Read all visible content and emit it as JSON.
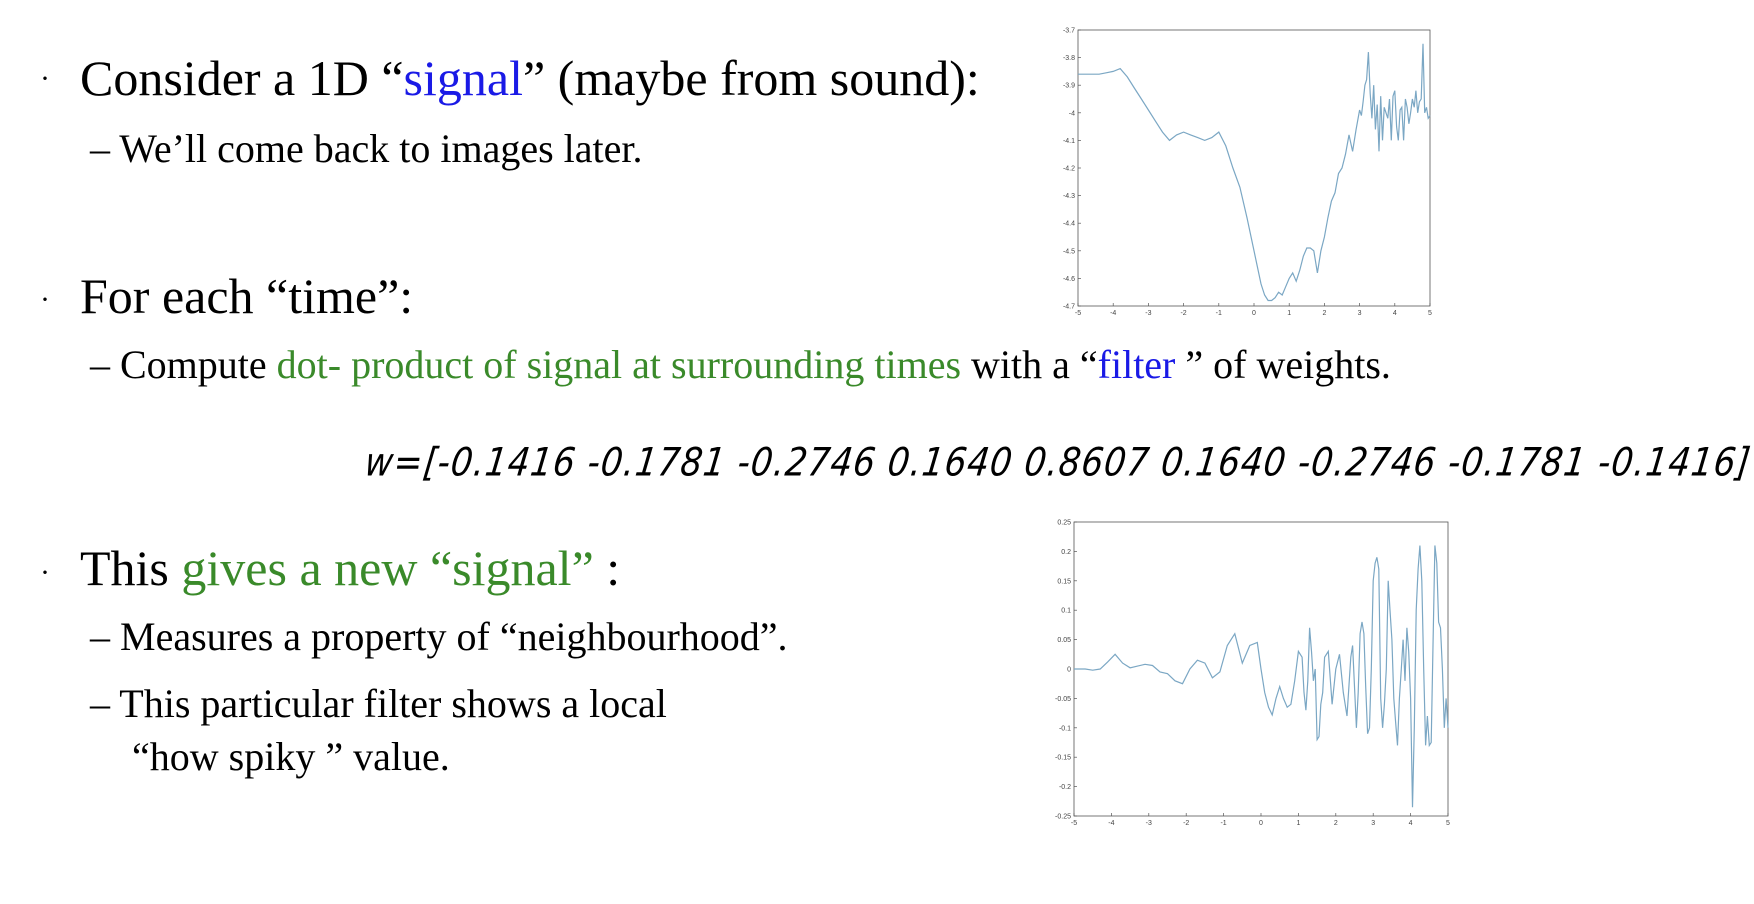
{
  "bullet_symbol": "·",
  "bullets": [
    {
      "main": {
        "before": "Consider a 1D “",
        "highlight": "signal",
        "after": "” (maybe from sound):"
      },
      "sub": [
        "– We’ll come back to images later."
      ]
    },
    {
      "main": {
        "text": "For each “time”:"
      },
      "sub": [
        {
          "dash": "– Compute ",
          "green": "dot- product of signal at surrounding times",
          "middle": " with a “",
          "blue": "filter",
          "after": " ” of weights."
        }
      ]
    },
    {
      "main": {
        "before": "This ",
        "highlight": "gives a new “signal”",
        "after": " :"
      },
      "sub": [
        "– Measures a property of “neighbourhood”.",
        "– This particular filter shows a local",
        "“how spiky ” value."
      ]
    }
  ],
  "handwritten_weights": "w=[-0.1416  -0.1781  -0.2746  0.1640  0.8607  0.1640  -0.2746  -0.1781  -0.1416]",
  "colors": {
    "blue": "#1a1ae6",
    "green": "#3a8a2a",
    "line": "#7ba7c4"
  },
  "chart_data": [
    {
      "type": "line",
      "title": "",
      "xlabel": "",
      "ylabel": "",
      "xlim": [
        -5,
        5
      ],
      "ylim": [
        -4.7,
        -3.7
      ],
      "x_ticks": [
        "-5",
        "-4",
        "-3",
        "-2",
        "-1",
        "0",
        "1",
        "2",
        "3",
        "4",
        "5"
      ],
      "y_ticks": [
        "-3.7",
        "-3.8",
        "-3.9",
        "-4",
        "-4.1",
        "-4.2",
        "-4.3",
        "-4.4",
        "-4.5",
        "-4.6",
        "-4.7"
      ],
      "series": [
        {
          "x": [
            -5,
            -4.7,
            -4.4,
            -4.2,
            -4,
            -3.8,
            -3.6,
            -3.4,
            -3.2,
            -3,
            -2.8,
            -2.6,
            -2.4,
            -2.2,
            -2,
            -1.8,
            -1.6,
            -1.4,
            -1.2,
            -1,
            -0.8,
            -0.6,
            -0.4,
            -0.2,
            0,
            0.2,
            0.3,
            0.4,
            0.5,
            0.6,
            0.7,
            0.8,
            0.9,
            1,
            1.1,
            1.2,
            1.3,
            1.4,
            1.5,
            1.6,
            1.7,
            1.8,
            1.9,
            2,
            2.1,
            2.2,
            2.3,
            2.4,
            2.5,
            2.6,
            2.7,
            2.8,
            2.9,
            3,
            3.05,
            3.1,
            3.15,
            3.2,
            3.25,
            3.3,
            3.35,
            3.4,
            3.45,
            3.5,
            3.55,
            3.6,
            3.65,
            3.7,
            3.75,
            3.8,
            3.85,
            3.9,
            3.95,
            4,
            4.05,
            4.1,
            4.15,
            4.2,
            4.25,
            4.3,
            4.35,
            4.4,
            4.45,
            4.5,
            4.55,
            4.6,
            4.65,
            4.7,
            4.75,
            4.8,
            4.85,
            4.9,
            4.95,
            5
          ],
          "y": [
            -3.86,
            -3.86,
            -3.86,
            -3.855,
            -3.85,
            -3.84,
            -3.87,
            -3.91,
            -3.95,
            -3.99,
            -4.03,
            -4.07,
            -4.1,
            -4.08,
            -4.07,
            -4.08,
            -4.09,
            -4.1,
            -4.09,
            -4.07,
            -4.12,
            -4.2,
            -4.27,
            -4.38,
            -4.5,
            -4.62,
            -4.66,
            -4.68,
            -4.68,
            -4.67,
            -4.65,
            -4.66,
            -4.63,
            -4.6,
            -4.58,
            -4.61,
            -4.57,
            -4.52,
            -4.49,
            -4.49,
            -4.5,
            -4.58,
            -4.5,
            -4.45,
            -4.38,
            -4.32,
            -4.29,
            -4.22,
            -4.2,
            -4.15,
            -4.08,
            -4.14,
            -4.06,
            -3.99,
            -4.01,
            -3.96,
            -3.9,
            -3.88,
            -3.78,
            -3.93,
            -4.02,
            -3.9,
            -4.06,
            -3.97,
            -4.14,
            -3.94,
            -4.1,
            -3.98,
            -4.0,
            -4.02,
            -3.95,
            -4.1,
            -3.94,
            -3.92,
            -4.05,
            -4.1,
            -3.99,
            -3.98,
            -4.1,
            -3.95,
            -3.98,
            -4.04,
            -4.0,
            -3.95,
            -3.98,
            -3.92,
            -4.0,
            -3.96,
            -3.95,
            -3.75,
            -4.0,
            -3.98,
            -4.02,
            -4.01
          ]
        }
      ]
    },
    {
      "type": "line",
      "title": "",
      "xlabel": "",
      "ylabel": "",
      "xlim": [
        -5,
        5
      ],
      "ylim": [
        -0.25,
        0.25
      ],
      "x_ticks": [
        "-5",
        "-4",
        "-3",
        "-2",
        "-1",
        "0",
        "1",
        "2",
        "3",
        "4",
        "5"
      ],
      "y_ticks": [
        "0.25",
        "0.2",
        "0.15",
        "0.1",
        "0.05",
        "0",
        "-0.05",
        "-0.1",
        "-0.15",
        "-0.2",
        "-0.25"
      ],
      "series": [
        {
          "x": [
            -5,
            -4.7,
            -4.5,
            -4.3,
            -4.1,
            -3.9,
            -3.7,
            -3.5,
            -3.3,
            -3.1,
            -2.9,
            -2.7,
            -2.5,
            -2.3,
            -2.1,
            -1.9,
            -1.7,
            -1.5,
            -1.3,
            -1.1,
            -0.9,
            -0.7,
            -0.5,
            -0.3,
            -0.1,
            0,
            0.1,
            0.2,
            0.3,
            0.4,
            0.5,
            0.6,
            0.7,
            0.8,
            0.9,
            1,
            1.1,
            1.15,
            1.2,
            1.25,
            1.3,
            1.35,
            1.4,
            1.45,
            1.5,
            1.55,
            1.6,
            1.65,
            1.7,
            1.8,
            1.9,
            2,
            2.1,
            2.2,
            2.3,
            2.4,
            2.45,
            2.5,
            2.55,
            2.6,
            2.65,
            2.7,
            2.75,
            2.8,
            2.85,
            2.9,
            2.95,
            3,
            3.05,
            3.1,
            3.15,
            3.2,
            3.25,
            3.3,
            3.35,
            3.4,
            3.45,
            3.5,
            3.55,
            3.6,
            3.65,
            3.7,
            3.75,
            3.8,
            3.85,
            3.9,
            3.95,
            4,
            4.05,
            4.1,
            4.15,
            4.2,
            4.25,
            4.3,
            4.35,
            4.4,
            4.45,
            4.5,
            4.55,
            4.6,
            4.65,
            4.7,
            4.75,
            4.8,
            4.85,
            4.9,
            4.95,
            5
          ],
          "y": [
            0,
            0,
            -0.002,
            0,
            0.012,
            0.025,
            0.01,
            0.002,
            0.005,
            0.008,
            0.006,
            -0.005,
            -0.008,
            -0.02,
            -0.025,
            0.0,
            0.015,
            0.01,
            -0.015,
            -0.005,
            0.04,
            0.06,
            0.01,
            0.04,
            0.045,
            0.0,
            -0.04,
            -0.065,
            -0.078,
            -0.05,
            -0.03,
            -0.05,
            -0.065,
            -0.06,
            -0.02,
            0.03,
            0.02,
            -0.04,
            -0.07,
            -0.02,
            0.07,
            0.03,
            -0.02,
            0.0,
            -0.12,
            -0.115,
            -0.06,
            -0.04,
            0.02,
            0.03,
            -0.06,
            0.0,
            0.025,
            -0.04,
            -0.08,
            0.02,
            0.04,
            -0.03,
            -0.1,
            -0.04,
            0.06,
            0.08,
            0.06,
            -0.03,
            -0.11,
            -0.1,
            0.0,
            0.15,
            0.18,
            0.19,
            0.17,
            -0.05,
            -0.1,
            -0.06,
            0.0,
            0.15,
            0.1,
            0.05,
            -0.05,
            -0.09,
            -0.13,
            -0.05,
            0.0,
            0.05,
            -0.02,
            0.07,
            0.03,
            -0.05,
            -0.235,
            -0.1,
            0.1,
            0.17,
            0.21,
            0.15,
            0.0,
            -0.13,
            -0.08,
            -0.13,
            -0.125,
            0.04,
            0.21,
            0.18,
            0.08,
            0.07,
            0.0,
            -0.1,
            -0.05,
            -0.1
          ]
        }
      ]
    }
  ]
}
